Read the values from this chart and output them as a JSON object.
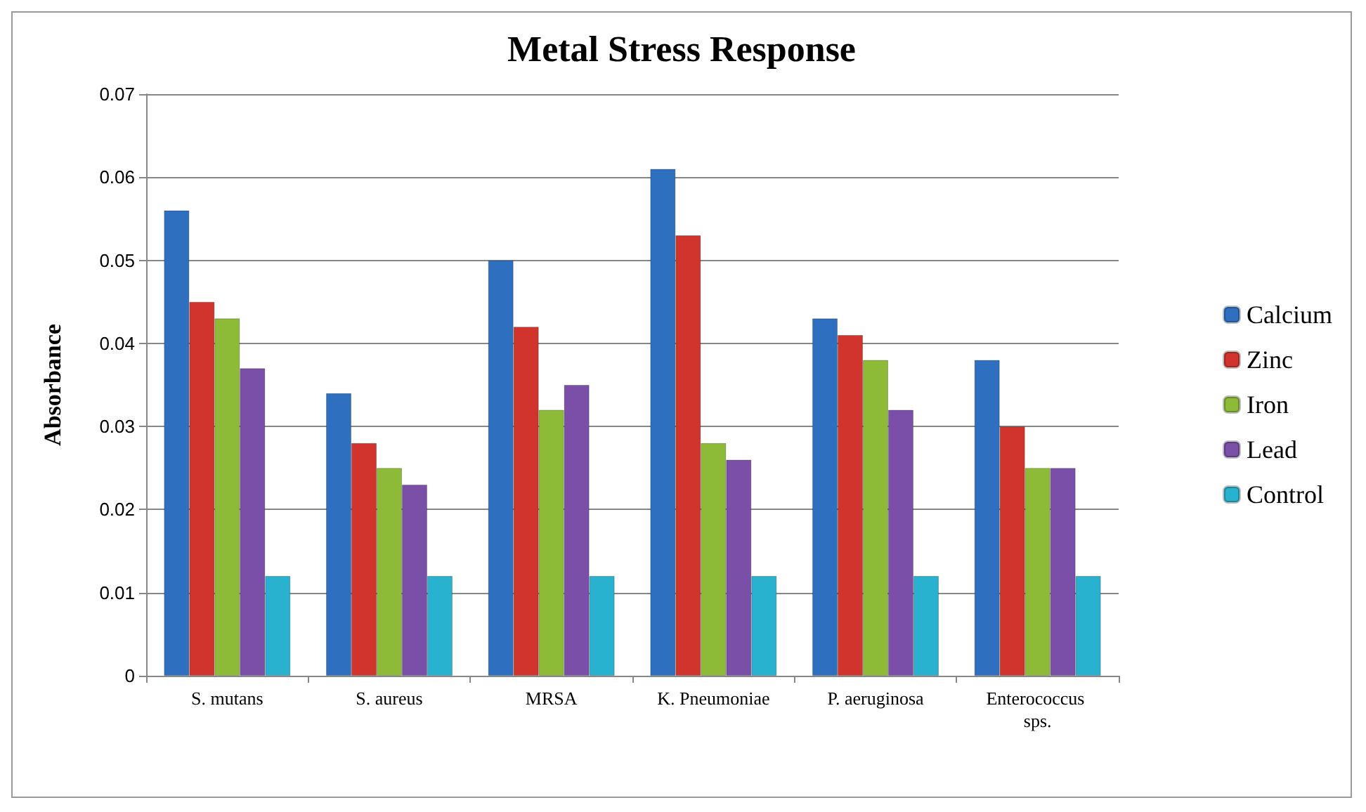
{
  "chart_data": {
    "type": "bar",
    "title": "Metal Stress Response",
    "ylabel": "Absorbance",
    "categories": [
      "S. mutans",
      "S. aureus",
      "MRSA",
      "K. Pneumoniae",
      "P. aeruginosa",
      "Enterococcus sps."
    ],
    "series": [
      {
        "name": "Calcium",
        "color": "#2f6fc0",
        "values": [
          0.056,
          0.034,
          0.05,
          0.061,
          0.043,
          0.038
        ]
      },
      {
        "name": "Zinc",
        "color": "#d0342c",
        "values": [
          0.045,
          0.028,
          0.042,
          0.053,
          0.041,
          0.03
        ]
      },
      {
        "name": "Iron",
        "color": "#8dbb38",
        "values": [
          0.043,
          0.025,
          0.032,
          0.028,
          0.038,
          0.025
        ]
      },
      {
        "name": "Lead",
        "color": "#7a4fa8",
        "values": [
          0.037,
          0.023,
          0.035,
          0.026,
          0.032,
          0.025
        ]
      },
      {
        "name": "Control",
        "color": "#29b2cf",
        "values": [
          0.012,
          0.012,
          0.012,
          0.012,
          0.012,
          0.012
        ]
      }
    ],
    "ylim": [
      0,
      0.07
    ],
    "yticks": [
      0,
      0.01,
      0.02,
      0.03,
      0.04,
      0.05,
      0.06,
      0.07
    ],
    "grid": "y",
    "legend": "right"
  }
}
